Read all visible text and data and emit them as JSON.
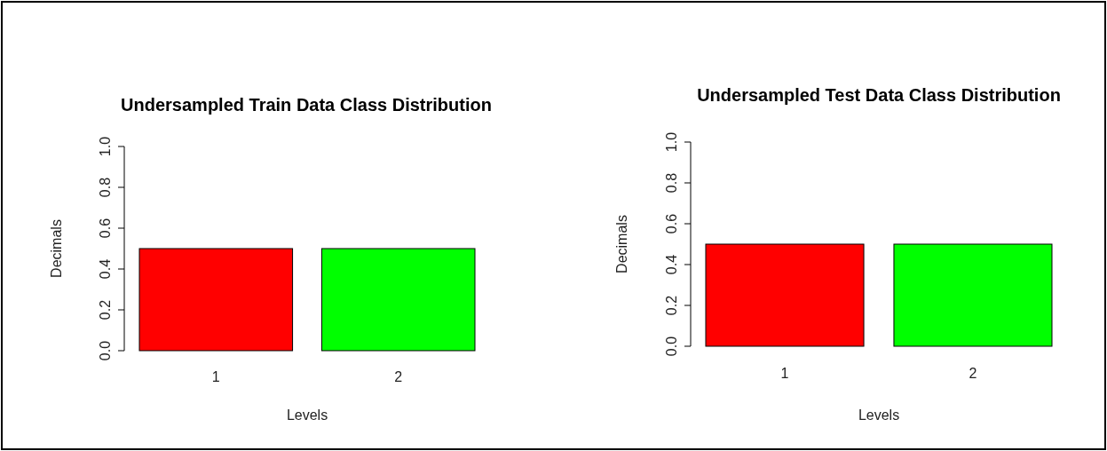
{
  "chart_data": [
    {
      "type": "bar",
      "title": "Undersampled Train Data Class Distribution",
      "xlabel": "Levels",
      "ylabel": "Decimals",
      "categories": [
        "1",
        "2"
      ],
      "values": [
        0.5,
        0.5
      ],
      "colors": [
        "#ff0000",
        "#00ff00"
      ],
      "ylim": [
        0,
        1
      ],
      "yticks": [
        {
          "value": 0,
          "label": "0.0"
        },
        {
          "value": 0.2,
          "label": "0.2"
        },
        {
          "value": 0.4,
          "label": "0.4"
        },
        {
          "value": 0.6,
          "label": "0.6"
        },
        {
          "value": 0.8,
          "label": "0.8"
        },
        {
          "value": 1,
          "label": "1.0"
        }
      ]
    },
    {
      "type": "bar",
      "title": "Undersampled Test Data Class Distribution",
      "xlabel": "Levels",
      "ylabel": "Decimals",
      "categories": [
        "1",
        "2"
      ],
      "values": [
        0.5,
        0.5
      ],
      "colors": [
        "#ff0000",
        "#00ff00"
      ],
      "ylim": [
        0,
        1
      ],
      "yticks": [
        {
          "value": 0,
          "label": "0.0"
        },
        {
          "value": 0.2,
          "label": "0.2"
        },
        {
          "value": 0.4,
          "label": "0.4"
        },
        {
          "value": 0.6,
          "label": "0.6"
        },
        {
          "value": 0.8,
          "label": "0.8"
        },
        {
          "value": 1,
          "label": "1.0"
        }
      ]
    }
  ]
}
